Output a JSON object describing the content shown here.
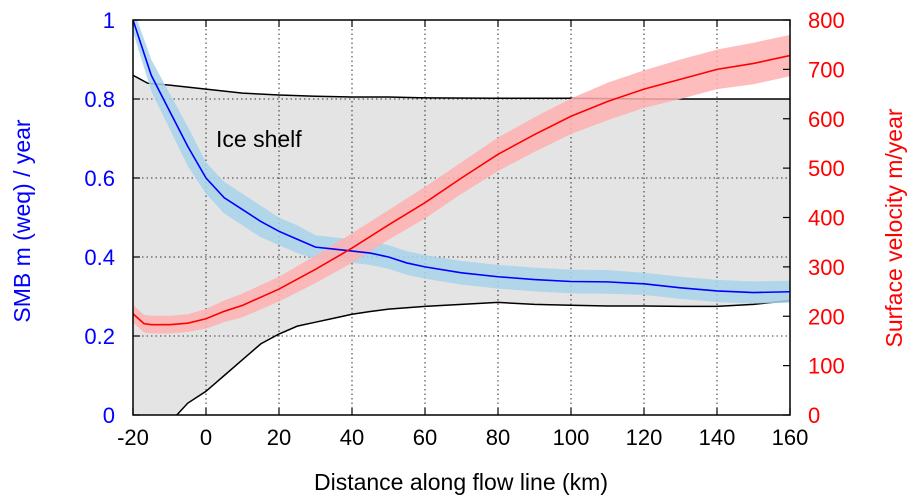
{
  "chart_data": {
    "type": "line",
    "xlabel": "Distance along flow line (km)",
    "ylabel_left": "SMB m (weq) / year",
    "ylabel_right": "Surface velocity m/year",
    "xlim": [
      -20,
      160
    ],
    "ylim_left": [
      0,
      1
    ],
    "ylim_right": [
      0,
      800
    ],
    "x_ticks": [
      -20,
      0,
      20,
      40,
      60,
      80,
      100,
      120,
      140,
      160
    ],
    "y_left_ticks": [
      "0",
      "0.2",
      "0.4",
      "0.6",
      "0.8",
      "1"
    ],
    "y_right_ticks": [
      "0",
      "100",
      "200",
      "300",
      "400",
      "500",
      "600",
      "700",
      "800"
    ],
    "grid": true,
    "annotation": "Ice shelf",
    "colors": {
      "smb_line": "#0000ff",
      "smb_band": "#a8d4ea",
      "velocity_line": "#ff0000",
      "velocity_band": "#ffb0b0",
      "ice_shelf_fill": "#e4e4e4",
      "ice_shelf_outline": "#000000",
      "left_axis": "#0000ff",
      "right_axis": "#ff0000"
    },
    "series": [
      {
        "axis": "left",
        "x": [
          -20,
          -15,
          -10,
          -5,
          0,
          5,
          10,
          15,
          20,
          25,
          30,
          35,
          40,
          45,
          50,
          55,
          60,
          70,
          80,
          90,
          100,
          110,
          120,
          130,
          140,
          150,
          160
        ],
        "values": [
          1.0,
          0.86,
          0.77,
          0.68,
          0.6,
          0.55,
          0.52,
          0.49,
          0.465,
          0.445,
          0.425,
          0.42,
          0.415,
          0.41,
          0.4,
          0.385,
          0.375,
          0.36,
          0.35,
          0.343,
          0.338,
          0.337,
          0.332,
          0.322,
          0.314,
          0.31,
          0.312
        ],
        "band_halfwidth": [
          0.03,
          0.04,
          0.045,
          0.05,
          0.04,
          0.04,
          0.04,
          0.04,
          0.035,
          0.035,
          0.03,
          0.03,
          0.03,
          0.03,
          0.03,
          0.03,
          0.03,
          0.03,
          0.03,
          0.03,
          0.03,
          0.03,
          0.028,
          0.028,
          0.028,
          0.028,
          0.028
        ]
      },
      {
        "axis": "right",
        "x": [
          -20,
          -17,
          -15,
          -10,
          -5,
          0,
          5,
          10,
          20,
          30,
          40,
          50,
          60,
          70,
          80,
          90,
          100,
          110,
          120,
          130,
          140,
          150,
          160
        ],
        "values": [
          205,
          185,
          183,
          183,
          186,
          195,
          210,
          222,
          255,
          295,
          338,
          385,
          430,
          480,
          528,
          568,
          605,
          635,
          660,
          680,
          700,
          712,
          728
        ],
        "band_halfwidth": [
          18,
          18,
          18,
          18,
          18,
          20,
          22,
          24,
          25,
          28,
          30,
          30,
          32,
          32,
          34,
          35,
          36,
          38,
          38,
          40,
          40,
          42,
          42
        ]
      }
    ],
    "ice_shelf": {
      "axis": "left",
      "top_x": [
        -20,
        -16,
        -10,
        -5,
        0,
        10,
        20,
        30,
        40,
        50,
        60,
        80,
        100,
        120,
        140,
        160
      ],
      "top_y": [
        0.86,
        0.84,
        0.835,
        0.83,
        0.825,
        0.815,
        0.81,
        0.807,
        0.805,
        0.805,
        0.803,
        0.802,
        0.802,
        0.8,
        0.8,
        0.8
      ],
      "bottom_x": [
        -8,
        -5,
        0,
        5,
        10,
        15,
        20,
        25,
        30,
        35,
        40,
        45,
        50,
        60,
        70,
        80,
        90,
        100,
        110,
        120,
        130,
        140,
        150,
        160
      ],
      "bottom_y": [
        0.0,
        0.03,
        0.06,
        0.1,
        0.14,
        0.18,
        0.205,
        0.225,
        0.235,
        0.245,
        0.255,
        0.262,
        0.268,
        0.275,
        0.28,
        0.285,
        0.28,
        0.278,
        0.276,
        0.276,
        0.275,
        0.275,
        0.28,
        0.29
      ]
    }
  }
}
